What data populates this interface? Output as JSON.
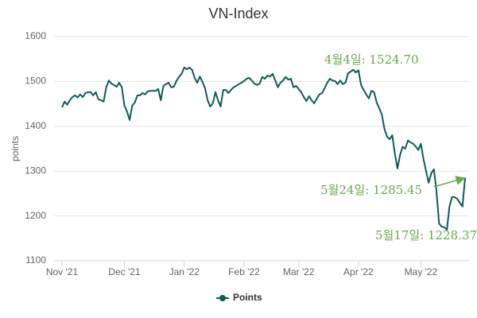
{
  "chart_data": {
    "type": "line",
    "title": "VN-Index",
    "y_label": "points",
    "categories": [
      "Nov '21",
      null,
      null,
      null,
      null,
      null,
      null,
      null,
      null,
      null,
      null,
      null,
      null,
      null,
      null,
      null,
      null,
      null,
      null,
      null,
      null,
      null,
      null,
      null,
      "Dec '21",
      null,
      null,
      null,
      null,
      null,
      null,
      null,
      null,
      null,
      null,
      null,
      null,
      null,
      null,
      null,
      null,
      null,
      null,
      null,
      null,
      null,
      null,
      "Jan '22",
      null,
      null,
      null,
      null,
      null,
      null,
      null,
      null,
      null,
      null,
      null,
      null,
      null,
      null,
      null,
      null,
      null,
      null,
      null,
      null,
      null,
      null,
      "Feb '22",
      null,
      null,
      null,
      null,
      null,
      null,
      null,
      null,
      null,
      null,
      null,
      null,
      null,
      null,
      null,
      null,
      null,
      null,
      null,
      null,
      "Mar '22",
      null,
      null,
      null,
      null,
      null,
      null,
      null,
      null,
      null,
      null,
      null,
      null,
      null,
      null,
      null,
      null,
      null,
      null,
      null,
      null,
      null,
      null,
      "Apr '22",
      null,
      null,
      null,
      null,
      null,
      null,
      null,
      null,
      null,
      null,
      null,
      null,
      null,
      null,
      null,
      null,
      null,
      null,
      null,
      null,
      null,
      null,
      null,
      "May '22",
      null,
      null,
      null,
      null,
      null,
      null,
      null,
      null,
      null,
      null,
      null,
      null,
      null,
      null,
      null,
      null,
      null
    ],
    "series": [
      {
        "name": "Points",
        "color": "#0b5d58",
        "values": [
          1442,
          1455,
          1448,
          1458,
          1465,
          1469,
          1464,
          1471,
          1465,
          1474,
          1476,
          1476,
          1469,
          1476,
          1460,
          1458,
          1455,
          1487,
          1502,
          1495,
          1492,
          1488,
          1497,
          1487,
          1446,
          1433,
          1414,
          1446,
          1453,
          1469,
          1469,
          1474,
          1471,
          1478,
          1479,
          1479,
          1479,
          1483,
          1458,
          1490,
          1494,
          1497,
          1487,
          1488,
          1501,
          1510,
          1517,
          1531,
          1527,
          1531,
          1526,
          1508,
          1497,
          1511,
          1499,
          1485,
          1458,
          1444,
          1451,
          1476,
          1458,
          1444,
          1481,
          1481,
          1474,
          1481,
          1487,
          1490,
          1494,
          1497,
          1501,
          1506,
          1508,
          1502,
          1495,
          1492,
          1495,
          1510,
          1506,
          1513,
          1511,
          1517,
          1502,
          1487,
          1497,
          1502,
          1510,
          1504,
          1506,
          1487,
          1490,
          1483,
          1476,
          1465,
          1456,
          1467,
          1458,
          1451,
          1462,
          1471,
          1474,
          1485,
          1497,
          1506,
          1502,
          1501,
          1494,
          1502,
          1494,
          1497,
          1518,
          1522,
          1526,
          1520,
          1524.7,
          1492,
          1481,
          1471,
          1462,
          1479,
          1476,
          1453,
          1440,
          1426,
          1394,
          1377,
          1371,
          1380,
          1339,
          1306,
          1336,
          1354,
          1350,
          1368,
          1364,
          1361,
          1355,
          1347,
          1361,
          1327,
          1300,
          1274,
          1295,
          1304,
          1256,
          1183,
          1176,
          1175,
          1169,
          1221,
          1242,
          1242,
          1238,
          1229,
          1221,
          1285.45
        ]
      }
    ],
    "ylim": [
      1100,
      1600
    ],
    "yticks": [
      1100,
      1200,
      1300,
      1400,
      1500,
      1600
    ],
    "grid": true,
    "annotations": [
      "4월4일: 1524.70",
      "5월24일: 1285.45",
      "5월17일: 1228.37"
    ]
  }
}
